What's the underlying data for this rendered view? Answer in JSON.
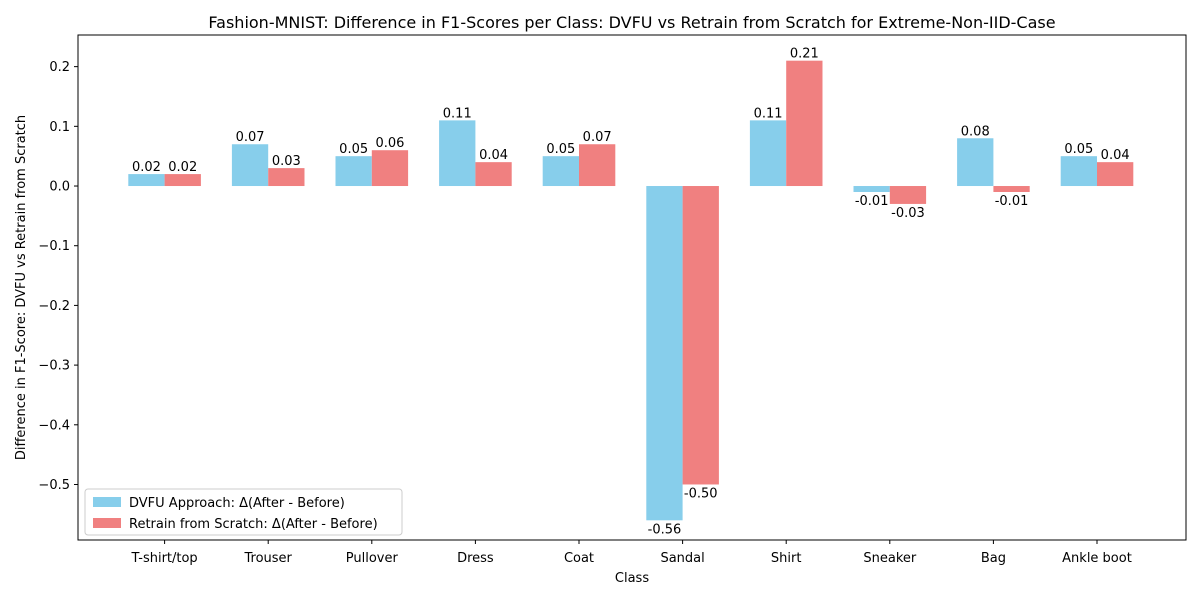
{
  "chart_data": {
    "type": "bar",
    "title": "Fashion-MNIST: Difference in F1-Scores per Class: DVFU vs Retrain from Scratch for Extreme-Non-IID-Case",
    "xlabel": "Class",
    "ylabel": "Difference in F1-Score: DVFU vs Retrain from Scratch",
    "categories": [
      "T-shirt/top",
      "Trouser",
      "Pullover",
      "Dress",
      "Coat",
      "Sandal",
      "Shirt",
      "Sneaker",
      "Bag",
      "Ankle boot"
    ],
    "series": [
      {
        "name": "DVFU Approach: Δ(After - Before)",
        "color": "#87ceeb",
        "values": [
          0.02,
          0.07,
          0.05,
          0.11,
          0.05,
          -0.56,
          0.11,
          -0.01,
          0.08,
          0.05
        ],
        "labels": [
          "0.02",
          "0.07",
          "0.05",
          "0.11",
          "0.05",
          "-0.56",
          "0.11",
          "-0.01",
          "0.08",
          "0.05"
        ]
      },
      {
        "name": "Retrain from Scratch: Δ(After - Before)",
        "color": "#f08080",
        "values": [
          0.02,
          0.03,
          0.06,
          0.04,
          0.07,
          -0.5,
          0.21,
          -0.03,
          -0.01,
          0.04
        ],
        "labels": [
          "0.02",
          "0.03",
          "0.06",
          "0.04",
          "0.07",
          "-0.50",
          "0.21",
          "-0.03",
          "-0.01",
          "0.04"
        ]
      }
    ],
    "ylim": [
      -0.593,
      0.253
    ],
    "yticks": [
      0.2,
      0.1,
      0.0,
      -0.1,
      -0.2,
      -0.3,
      -0.4,
      -0.5
    ],
    "ytick_labels": [
      "0.2",
      "0.1",
      "0.0",
      "−0.1",
      "−0.2",
      "−0.3",
      "−0.4",
      "−0.5"
    ],
    "grid": false,
    "legend_position": "lower-left"
  }
}
